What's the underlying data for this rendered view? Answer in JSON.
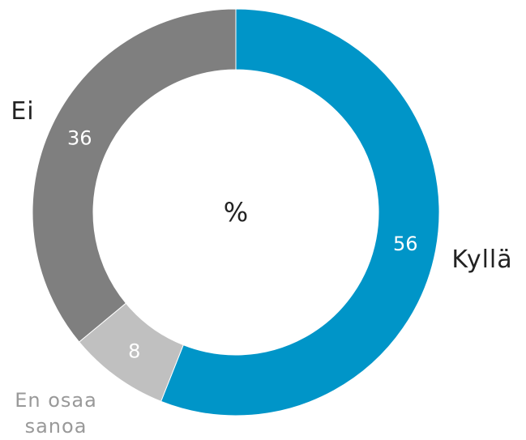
{
  "chart_data": {
    "type": "donut",
    "center_label": "%",
    "categories": [
      "Kyllä",
      "En osaa sanoa",
      "Ei"
    ],
    "values": [
      56,
      8,
      36
    ],
    "colors": [
      "#0095c8",
      "#c0c0c0",
      "#7f7f7f"
    ]
  }
}
